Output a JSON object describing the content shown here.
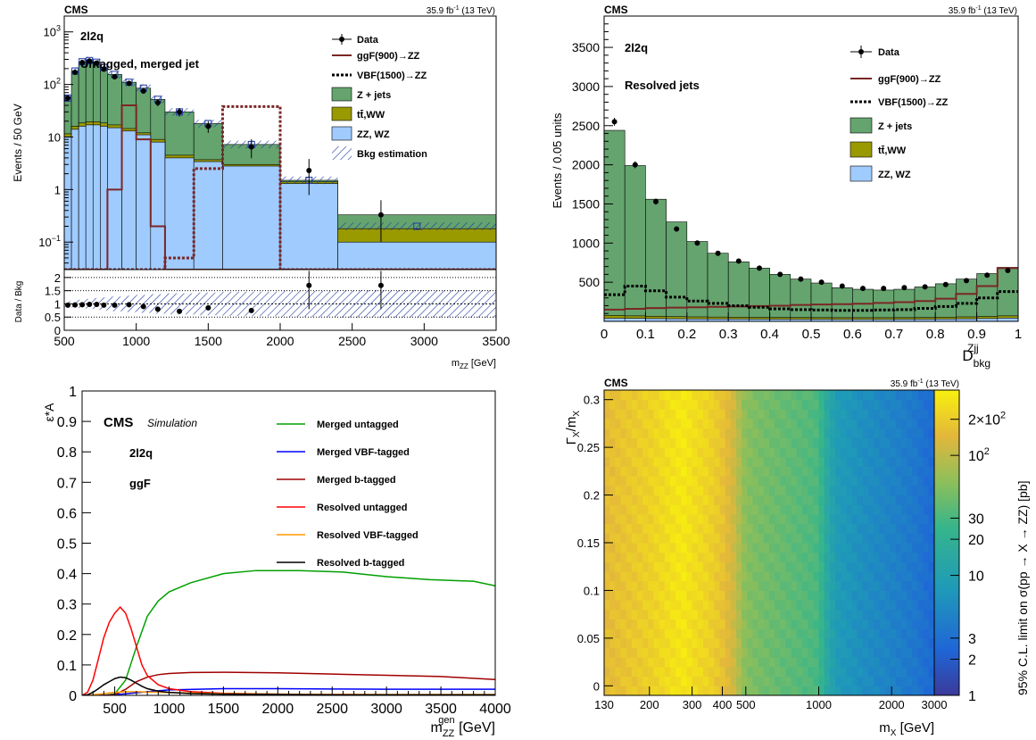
{
  "chart_data": [
    {
      "type": "bar",
      "panel": "top-left",
      "experiment": "CMS",
      "lumi": "35.9 fb",
      "lumi_sup": "-1",
      "lumi_tail": " (13 TeV)",
      "channel": "2l2q",
      "category": "Untagged, merged jet",
      "ylabel": "Events / 50 GeV",
      "xlabel": "m",
      "xlabel_sub": "ZZ",
      "xlabel_unit": " [GeV]",
      "xlim": [
        500,
        3500
      ],
      "ylim": [
        0.03,
        2000
      ],
      "log_y": true,
      "y_ticks": [
        {
          "v": 0.1,
          "b": "10",
          "e": "−1"
        },
        {
          "v": 1,
          "b": "1",
          "e": ""
        },
        {
          "v": 10,
          "b": "10",
          "e": ""
        },
        {
          "v": 100,
          "b": "10",
          "e": "2"
        },
        {
          "v": 1000,
          "b": "10",
          "e": "3"
        }
      ],
      "x_ticks": [
        500,
        1000,
        1500,
        2000,
        2500,
        3000,
        3500
      ],
      "bin_edges": [
        500,
        550,
        600,
        650,
        700,
        750,
        800,
        900,
        1000,
        1100,
        1200,
        1400,
        1600,
        2000,
        2400,
        3500
      ],
      "stack": [
        {
          "name": "ZZ, WZ",
          "color": "#a0cbff",
          "values": [
            10,
            14,
            16,
            17,
            17,
            16,
            15,
            13,
            11,
            8,
            4,
            3.4,
            2.8,
            1.3,
            0.1
          ]
        },
        {
          "name": "tt̄,WW",
          "color": "#999900",
          "values": [
            11.5,
            16,
            18.5,
            19.5,
            19.5,
            18.5,
            17,
            14.5,
            12,
            9,
            4.5,
            3.7,
            3,
            1.4,
            0.18
          ]
        },
        {
          "name": "Z + jets",
          "color": "#65a46e",
          "values": [
            55,
            180,
            270,
            285,
            265,
            210,
            155,
            110,
            85,
            52,
            30,
            18,
            7.2,
            1.5,
            0.33
          ]
        }
      ],
      "bkg_estimation": [
        55,
        180,
        270,
        285,
        265,
        210,
        155,
        110,
        85,
        52,
        30,
        18,
        7.2,
        1.5,
        0.2
      ],
      "signal_ggf900": {
        "name": "ggF(900)→ZZ",
        "color": "#7a2626",
        "values": [
          0,
          0,
          0,
          0,
          0,
          0,
          1.0,
          40,
          9,
          0.2,
          0,
          0,
          0,
          0,
          0
        ]
      },
      "signal_vbf1500": {
        "name": "VBF(1500)→ZZ",
        "color": "#7a2626",
        "values": [
          0,
          0,
          0,
          0,
          0,
          0,
          0,
          0,
          0,
          0,
          0.05,
          2.5,
          38,
          0,
          0
        ]
      },
      "data": {
        "name": "Data",
        "x": [
          525,
          575,
          625,
          675,
          725,
          775,
          850,
          950,
          1050,
          1150,
          1300,
          1500,
          1800,
          2200,
          2700
        ],
        "y": [
          55,
          170,
          260,
          280,
          255,
          195,
          140,
          105,
          75,
          45,
          30,
          16,
          6.5,
          2.3,
          0.33
        ]
      },
      "legend": [
        "Data",
        "ggF(900)→ZZ",
        "VBF(1500)→ZZ",
        "Z + jets",
        "tt̄,WW",
        "ZZ, WZ",
        "Bkg estimation"
      ],
      "ratio": {
        "ylabel": "Data / Bkg",
        "ylim": [
          0,
          2.3
        ],
        "y_ticks": [
          0,
          0.5,
          1,
          1.5,
          2
        ],
        "x": [
          525,
          575,
          625,
          675,
          725,
          775,
          850,
          950,
          1050,
          1150,
          1300,
          1500,
          1800,
          2200,
          2700
        ],
        "y": [
          0.95,
          0.96,
          0.97,
          0.98,
          0.98,
          0.95,
          0.95,
          0.97,
          0.9,
          0.8,
          0.72,
          0.85,
          0.75,
          1.7,
          1.7
        ]
      }
    },
    {
      "type": "bar",
      "panel": "top-right",
      "experiment": "CMS",
      "lumi": "35.9 fb",
      "lumi_sup": "-1",
      "lumi_tail": " (13 TeV)",
      "channel": "2l2q",
      "category": "Resolved jets",
      "ylabel": "Events / 0.05 units",
      "xlabel": "D",
      "xlabel_sub": "bkg",
      "xlabel_sup": "Zjj",
      "xlim": [
        0,
        1
      ],
      "ylim": [
        0,
        3900
      ],
      "y_ticks": [
        500,
        1000,
        1500,
        2000,
        2500,
        3000,
        3500
      ],
      "x_ticks": [
        0,
        0.1,
        0.2,
        0.3,
        0.4,
        0.5,
        0.6,
        0.7,
        0.8,
        0.9,
        1
      ],
      "bin_edges": [
        0,
        0.05,
        0.1,
        0.15,
        0.2,
        0.25,
        0.3,
        0.35,
        0.4,
        0.45,
        0.5,
        0.55,
        0.6,
        0.65,
        0.7,
        0.75,
        0.8,
        0.85,
        0.9,
        0.95,
        1
      ],
      "stack": [
        {
          "name": "ZZ, WZ",
          "color": "#a0cbff",
          "values": [
            40,
            38,
            35,
            33,
            31,
            30,
            29,
            28,
            27,
            26,
            26,
            25,
            25,
            25,
            26,
            27,
            29,
            32,
            36,
            42
          ]
        },
        {
          "name": "tt̄,WW",
          "color": "#999900",
          "values": [
            75,
            70,
            65,
            60,
            57,
            55,
            53,
            51,
            50,
            49,
            48,
            47,
            47,
            47,
            48,
            50,
            53,
            57,
            62,
            70
          ]
        },
        {
          "name": "Z + jets",
          "color": "#65a46e",
          "values": [
            2440,
            1990,
            1560,
            1270,
            1020,
            870,
            760,
            680,
            600,
            540,
            490,
            430,
            410,
            400,
            410,
            440,
            480,
            540,
            610,
            690
          ]
        }
      ],
      "signal_ggf900": {
        "name": "ggF(900)→ZZ",
        "color": "#7a2626",
        "values": [
          150,
          160,
          170,
          175,
          180,
          185,
          190,
          195,
          200,
          210,
          215,
          220,
          225,
          235,
          245,
          260,
          290,
          350,
          450,
          680
        ]
      },
      "signal_vbf1500": {
        "name": "VBF(1500)→ZZ",
        "color": "#000000",
        "values": [
          340,
          450,
          390,
          310,
          260,
          230,
          200,
          180,
          160,
          150,
          145,
          140,
          140,
          145,
          150,
          165,
          190,
          230,
          300,
          380
        ]
      },
      "data": {
        "name": "Data",
        "x": [
          0.025,
          0.075,
          0.125,
          0.175,
          0.225,
          0.275,
          0.325,
          0.375,
          0.425,
          0.475,
          0.525,
          0.575,
          0.625,
          0.675,
          0.725,
          0.775,
          0.825,
          0.875,
          0.925,
          0.975
        ],
        "y": [
          2550,
          2000,
          1530,
          1180,
          1000,
          870,
          770,
          680,
          600,
          540,
          500,
          450,
          420,
          420,
          430,
          440,
          470,
          520,
          590,
          650
        ]
      },
      "legend": [
        "Data",
        "ggF(900)→ZZ",
        "VBF(1500)→ZZ",
        "Z + jets",
        "tt̄,WW",
        "ZZ, WZ"
      ]
    },
    {
      "type": "line",
      "panel": "bottom-left",
      "experiment": "CMS",
      "sim_label": "Simulation",
      "channel": "2l2q",
      "production": "ggF",
      "ylabel": "ε*A",
      "xlabel": "m",
      "xlabel_sub": "ZZ",
      "xlabel_sup": "gen",
      "xlabel_unit": " [GeV]",
      "xlim": [
        200,
        4000
      ],
      "ylim": [
        0,
        1
      ],
      "y_ticks": [
        0,
        0.1,
        0.2,
        0.3,
        0.4,
        0.5,
        0.6,
        0.7,
        0.8,
        0.9,
        1
      ],
      "x_ticks": [
        500,
        1000,
        1500,
        2000,
        2500,
        3000,
        3500,
        4000
      ],
      "series": [
        {
          "name": "Merged untagged",
          "color": "#00a000",
          "x": [
            200,
            400,
            500,
            600,
            700,
            800,
            900,
            1000,
            1200,
            1500,
            1800,
            2200,
            2600,
            3000,
            3400,
            3800,
            4000
          ],
          "y": [
            0,
            0,
            0.005,
            0.05,
            0.16,
            0.26,
            0.31,
            0.34,
            0.37,
            0.4,
            0.41,
            0.41,
            0.405,
            0.39,
            0.38,
            0.375,
            0.36
          ]
        },
        {
          "name": "Merged VBF-tagged",
          "color": "#0000ff",
          "x": [
            200,
            400,
            600,
            800,
            1000,
            1500,
            2000,
            2500,
            3000,
            3500,
            4000
          ],
          "y": [
            0,
            0,
            0.005,
            0.012,
            0.018,
            0.022,
            0.022,
            0.021,
            0.02,
            0.02,
            0.02
          ]
        },
        {
          "name": "Merged b-tagged",
          "color": "#a00000",
          "x": [
            200,
            400,
            500,
            600,
            700,
            800,
            900,
            1000,
            1200,
            1500,
            2000,
            2500,
            3000,
            3500,
            4000
          ],
          "y": [
            0,
            0,
            0.002,
            0.02,
            0.045,
            0.06,
            0.068,
            0.072,
            0.075,
            0.076,
            0.074,
            0.07,
            0.066,
            0.062,
            0.052
          ]
        },
        {
          "name": "Resolved untagged",
          "color": "#ff0000",
          "x": [
            200,
            250,
            300,
            350,
            400,
            450,
            500,
            550,
            600,
            650,
            700,
            750,
            800,
            900,
            1000,
            1200,
            1500,
            2000,
            2500,
            3000,
            3500,
            4000
          ],
          "y": [
            0,
            0.01,
            0.05,
            0.12,
            0.19,
            0.24,
            0.27,
            0.29,
            0.27,
            0.22,
            0.16,
            0.1,
            0.065,
            0.035,
            0.022,
            0.012,
            0.007,
            0.004,
            0.003,
            0.002,
            0.002,
            0.002
          ]
        },
        {
          "name": "Resolved VBF-tagged",
          "color": "#ff9900",
          "x": [
            200,
            300,
            400,
            500,
            600,
            700,
            800,
            1000,
            1500,
            2000,
            3000,
            4000
          ],
          "y": [
            0,
            0.002,
            0.006,
            0.01,
            0.012,
            0.012,
            0.011,
            0.009,
            0.006,
            0.004,
            0.003,
            0.003
          ]
        },
        {
          "name": "Resolved b-tagged",
          "color": "#000000",
          "x": [
            200,
            250,
            300,
            350,
            400,
            450,
            500,
            550,
            600,
            650,
            700,
            750,
            800,
            900,
            1000,
            1200,
            1500,
            2000,
            2500,
            3000,
            4000
          ],
          "y": [
            0,
            0.002,
            0.01,
            0.022,
            0.035,
            0.045,
            0.055,
            0.06,
            0.058,
            0.05,
            0.04,
            0.03,
            0.022,
            0.014,
            0.01,
            0.006,
            0.004,
            0.003,
            0.002,
            0.002,
            0.002
          ]
        }
      ],
      "legend": [
        "Merged untagged",
        "Merged VBF-tagged",
        "Merged b-tagged",
        "Resolved untagged",
        "Resolved VBF-tagged",
        "Resolved b-tagged"
      ]
    },
    {
      "type": "heatmap",
      "panel": "bottom-right",
      "experiment": "CMS",
      "lumi": "35.9 fb",
      "lumi_sup": "-1",
      "lumi_tail": " (13 TeV)",
      "ylabel": "Γ",
      "ylabel_sub": "X",
      "ylabel_tail": "/m",
      "ylabel_tail_sub": "X",
      "xlabel": "m",
      "xlabel_sub": "X",
      "xlabel_unit": " [GeV]",
      "zlabel": "95% C.L. limit on σ(pp → X → ZZ) [pb]",
      "xlim": [
        130,
        3000
      ],
      "ylim": [
        -0.01,
        0.31
      ],
      "log_x": true,
      "log_z": true,
      "zlim": [
        1,
        350
      ],
      "x_ticks": [
        130,
        200,
        300,
        400,
        500,
        1000,
        2000,
        3000
      ],
      "y_ticks": [
        0,
        0.05,
        0.1,
        0.15,
        0.2,
        0.25,
        0.3
      ],
      "z_ticks": [
        {
          "v": 1,
          "t": "1"
        },
        {
          "v": 2,
          "t": "2"
        },
        {
          "v": 3,
          "t": "3"
        },
        {
          "v": 10,
          "t": "10"
        },
        {
          "v": 20,
          "t": "20"
        },
        {
          "v": 30,
          "t": "30"
        },
        {
          "v": 100,
          "t": "10",
          "e": "2"
        },
        {
          "v": 200,
          "t": "2×10",
          "e": "2"
        }
      ],
      "profile_mass": [
        130,
        150,
        175,
        200,
        225,
        250,
        275,
        300,
        350,
        400,
        450,
        500,
        600,
        700,
        800,
        900,
        1000,
        1100,
        1200,
        1500,
        2000,
        2500,
        3000
      ],
      "profile_limit": [
        150,
        170,
        190,
        210,
        240,
        270,
        300,
        260,
        220,
        170,
        110,
        55,
        45,
        40,
        36,
        33,
        30,
        12,
        8,
        6,
        4.5,
        3.5,
        2.5
      ]
    }
  ]
}
